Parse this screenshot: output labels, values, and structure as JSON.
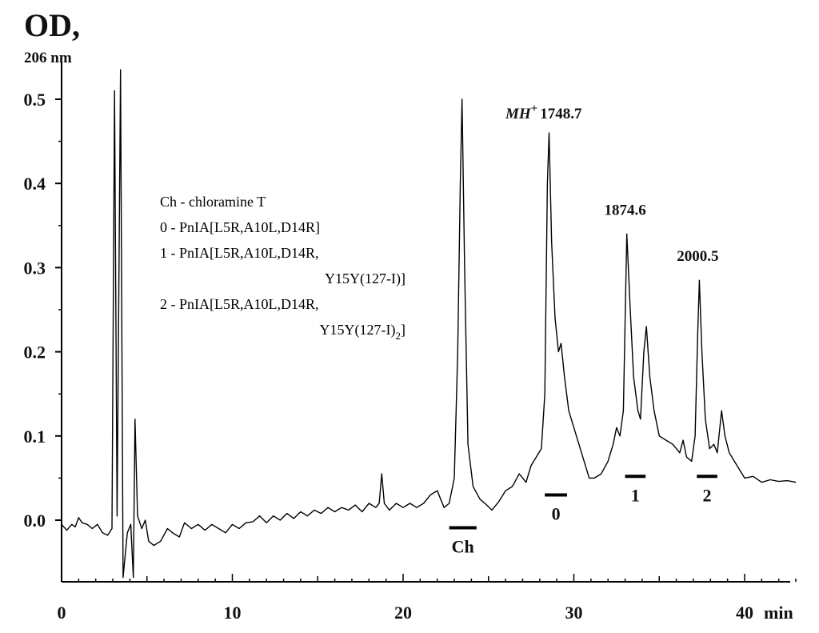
{
  "chart_data": {
    "type": "line",
    "ylabel": "OD,",
    "ylabel_unit": "206 nm",
    "xlabel": "min",
    "xlim": [
      0,
      43
    ],
    "ylim": [
      -0.07,
      0.55
    ],
    "x_ticks": [
      0,
      10,
      20,
      30,
      40
    ],
    "x_tick_labels": [
      "0",
      "10",
      "20",
      "30",
      "40"
    ],
    "y_ticks": [
      0.0,
      0.1,
      0.2,
      0.3,
      0.4,
      0.5
    ],
    "y_tick_labels": [
      "0.0",
      "0.1",
      "0.2",
      "0.3",
      "0.4",
      "0.5"
    ],
    "grid": false,
    "series": [
      {
        "points": [
          [
            0.0,
            -0.005
          ],
          [
            0.3,
            -0.012
          ],
          [
            0.6,
            -0.005
          ],
          [
            0.8,
            -0.008
          ],
          [
            1.0,
            0.003
          ],
          [
            1.2,
            -0.003
          ],
          [
            1.5,
            -0.005
          ],
          [
            1.8,
            -0.01
          ],
          [
            2.1,
            -0.005
          ],
          [
            2.4,
            -0.015
          ],
          [
            2.7,
            -0.018
          ],
          [
            2.95,
            -0.01
          ],
          [
            3.1,
            0.51
          ],
          [
            3.25,
            0.005
          ],
          [
            3.45,
            0.535
          ],
          [
            3.6,
            -0.068
          ],
          [
            3.85,
            -0.015
          ],
          [
            4.05,
            -0.005
          ],
          [
            4.2,
            -0.068
          ],
          [
            4.3,
            0.12
          ],
          [
            4.45,
            0.005
          ],
          [
            4.7,
            -0.01
          ],
          [
            4.9,
            0.0
          ],
          [
            5.1,
            -0.025
          ],
          [
            5.4,
            -0.03
          ],
          [
            5.8,
            -0.025
          ],
          [
            6.2,
            -0.01
          ],
          [
            6.5,
            -0.015
          ],
          [
            6.9,
            -0.02
          ],
          [
            7.2,
            -0.003
          ],
          [
            7.6,
            -0.01
          ],
          [
            8.0,
            -0.005
          ],
          [
            8.4,
            -0.012
          ],
          [
            8.8,
            -0.005
          ],
          [
            9.2,
            -0.01
          ],
          [
            9.6,
            -0.015
          ],
          [
            10.0,
            -0.005
          ],
          [
            10.4,
            -0.01
          ],
          [
            10.8,
            -0.003
          ],
          [
            11.2,
            -0.002
          ],
          [
            11.6,
            0.005
          ],
          [
            12.0,
            -0.003
          ],
          [
            12.4,
            0.005
          ],
          [
            12.8,
            0.0
          ],
          [
            13.2,
            0.008
          ],
          [
            13.6,
            0.002
          ],
          [
            14.0,
            0.01
          ],
          [
            14.4,
            0.005
          ],
          [
            14.8,
            0.012
          ],
          [
            15.2,
            0.008
          ],
          [
            15.6,
            0.015
          ],
          [
            16.0,
            0.01
          ],
          [
            16.4,
            0.015
          ],
          [
            16.8,
            0.012
          ],
          [
            17.2,
            0.018
          ],
          [
            17.6,
            0.01
          ],
          [
            18.0,
            0.02
          ],
          [
            18.4,
            0.015
          ],
          [
            18.6,
            0.02
          ],
          [
            18.75,
            0.055
          ],
          [
            18.9,
            0.02
          ],
          [
            19.2,
            0.012
          ],
          [
            19.6,
            0.02
          ],
          [
            20.0,
            0.015
          ],
          [
            20.4,
            0.02
          ],
          [
            20.8,
            0.015
          ],
          [
            21.2,
            0.02
          ],
          [
            21.6,
            0.03
          ],
          [
            22.0,
            0.035
          ],
          [
            22.4,
            0.015
          ],
          [
            22.7,
            0.02
          ],
          [
            23.0,
            0.05
          ],
          [
            23.2,
            0.2
          ],
          [
            23.35,
            0.4
          ],
          [
            23.45,
            0.5
          ],
          [
            23.6,
            0.3
          ],
          [
            23.8,
            0.09
          ],
          [
            24.1,
            0.04
          ],
          [
            24.5,
            0.025
          ],
          [
            24.9,
            0.018
          ],
          [
            25.2,
            0.012
          ],
          [
            25.6,
            0.022
          ],
          [
            26.0,
            0.035
          ],
          [
            26.4,
            0.04
          ],
          [
            26.8,
            0.055
          ],
          [
            27.2,
            0.045
          ],
          [
            27.5,
            0.065
          ],
          [
            27.8,
            0.075
          ],
          [
            28.1,
            0.085
          ],
          [
            28.3,
            0.15
          ],
          [
            28.45,
            0.4
          ],
          [
            28.55,
            0.46
          ],
          [
            28.7,
            0.33
          ],
          [
            28.9,
            0.24
          ],
          [
            29.1,
            0.2
          ],
          [
            29.25,
            0.21
          ],
          [
            29.45,
            0.17
          ],
          [
            29.7,
            0.13
          ],
          [
            30.0,
            0.11
          ],
          [
            30.3,
            0.09
          ],
          [
            30.6,
            0.07
          ],
          [
            30.9,
            0.05
          ],
          [
            31.2,
            0.05
          ],
          [
            31.6,
            0.055
          ],
          [
            32.0,
            0.07
          ],
          [
            32.3,
            0.09
          ],
          [
            32.5,
            0.11
          ],
          [
            32.7,
            0.1
          ],
          [
            32.9,
            0.13
          ],
          [
            33.1,
            0.34
          ],
          [
            33.3,
            0.25
          ],
          [
            33.5,
            0.17
          ],
          [
            33.75,
            0.13
          ],
          [
            33.9,
            0.12
          ],
          [
            34.1,
            0.2
          ],
          [
            34.25,
            0.23
          ],
          [
            34.45,
            0.17
          ],
          [
            34.7,
            0.13
          ],
          [
            35.0,
            0.1
          ],
          [
            35.4,
            0.095
          ],
          [
            35.8,
            0.09
          ],
          [
            36.2,
            0.08
          ],
          [
            36.4,
            0.095
          ],
          [
            36.6,
            0.075
          ],
          [
            36.9,
            0.07
          ],
          [
            37.1,
            0.1
          ],
          [
            37.25,
            0.22
          ],
          [
            37.35,
            0.285
          ],
          [
            37.5,
            0.2
          ],
          [
            37.7,
            0.12
          ],
          [
            37.95,
            0.085
          ],
          [
            38.2,
            0.09
          ],
          [
            38.4,
            0.08
          ],
          [
            38.65,
            0.13
          ],
          [
            38.85,
            0.1
          ],
          [
            39.1,
            0.08
          ],
          [
            39.4,
            0.07
          ],
          [
            39.7,
            0.06
          ],
          [
            40.0,
            0.05
          ],
          [
            40.5,
            0.052
          ],
          [
            41.0,
            0.045
          ],
          [
            41.5,
            0.048
          ],
          [
            42.0,
            0.046
          ],
          [
            42.5,
            0.047
          ],
          [
            43.0,
            0.045
          ]
        ]
      }
    ],
    "annotations": [
      {
        "id": "mh",
        "prefix": "MH",
        "sup": "+",
        "text": "1748.7",
        "x": 28.55,
        "y": 0.46
      },
      {
        "id": "p1",
        "text": "1874.6",
        "x": 33.1,
        "y": 0.34
      },
      {
        "id": "p2",
        "text": "2000.5",
        "x": 37.35,
        "y": 0.285
      }
    ],
    "fraction_marks": [
      {
        "label": "Ch",
        "x_start": 22.7,
        "x_end": 24.3,
        "y": -0.009
      },
      {
        "label": "0",
        "x_start": 28.3,
        "x_end": 29.6,
        "y": 0.03
      },
      {
        "label": "1",
        "x_start": 33.0,
        "x_end": 34.2,
        "y": 0.052
      },
      {
        "label": "2",
        "x_start": 37.2,
        "x_end": 38.4,
        "y": 0.052
      }
    ],
    "legend": {
      "placement": "center-left",
      "entries": [
        {
          "text": "Ch - chloramine T"
        },
        {
          "text": "0 - PnIA[L5R,A10L,D14R]"
        },
        {
          "text": "1 - PnIA[L5R,A10L,D14R,"
        },
        {
          "text": "Y15Y(127-I)]"
        },
        {
          "text": "2 - PnIA[L5R,A10L,D14R,"
        },
        {
          "text": "Y15Y(127-I)",
          "sub": "2",
          "tail": "]"
        }
      ]
    }
  }
}
